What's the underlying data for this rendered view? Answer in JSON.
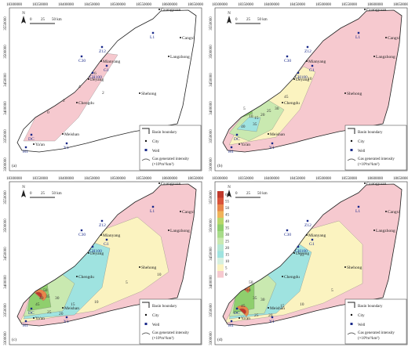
{
  "x_ticks": [
    "18300000",
    "18350000",
    "18400000",
    "18450000",
    "18500000",
    "18550000",
    "18600000",
    "18650000"
  ],
  "y_ticks": [
    "3550000",
    "3500000",
    "3450000",
    "3400000",
    "3350000",
    "3300000"
  ],
  "scale_bar": {
    "north": "N",
    "labels": [
      "0",
      "25",
      "50 km"
    ]
  },
  "cities": [
    "Guangyuan",
    "Cangxi",
    "Langzhong",
    "Mianyang",
    "Deyang",
    "Chengdu",
    "Shehong",
    "Meishan",
    "Ya'an"
  ],
  "wells": [
    "L1",
    "Z12",
    "C30",
    "G1",
    "CH100",
    "DC",
    "H1",
    "Y1"
  ],
  "legend": {
    "boundary": "Basin boundary",
    "city": "City",
    "well": "Well",
    "intensity": "Gas generated intensity",
    "unit": "(×10⁸m³/km²)"
  },
  "color_scale": [
    "60",
    "55",
    "50",
    "45",
    "40",
    "35",
    "30",
    "25",
    "20",
    "15",
    "10",
    "5",
    "0"
  ],
  "panels": [
    {
      "label": "(a)",
      "contour_labels": [
        "0",
        "2",
        "4",
        "6",
        "2"
      ]
    },
    {
      "label": "(b)",
      "contour_labels": [
        "5",
        "10",
        "15",
        "20",
        "25",
        "30",
        "35",
        "40",
        "45",
        "10"
      ]
    },
    {
      "label": "(c)",
      "contour_labels": [
        "5",
        "10",
        "15",
        "20",
        "25",
        "30",
        "35",
        "40",
        "45",
        "50",
        "10"
      ]
    },
    {
      "label": "(d)",
      "contour_labels": [
        "5",
        "10",
        "15",
        "20",
        "25",
        "30",
        "35",
        "40",
        "45",
        "50",
        "15"
      ]
    }
  ]
}
